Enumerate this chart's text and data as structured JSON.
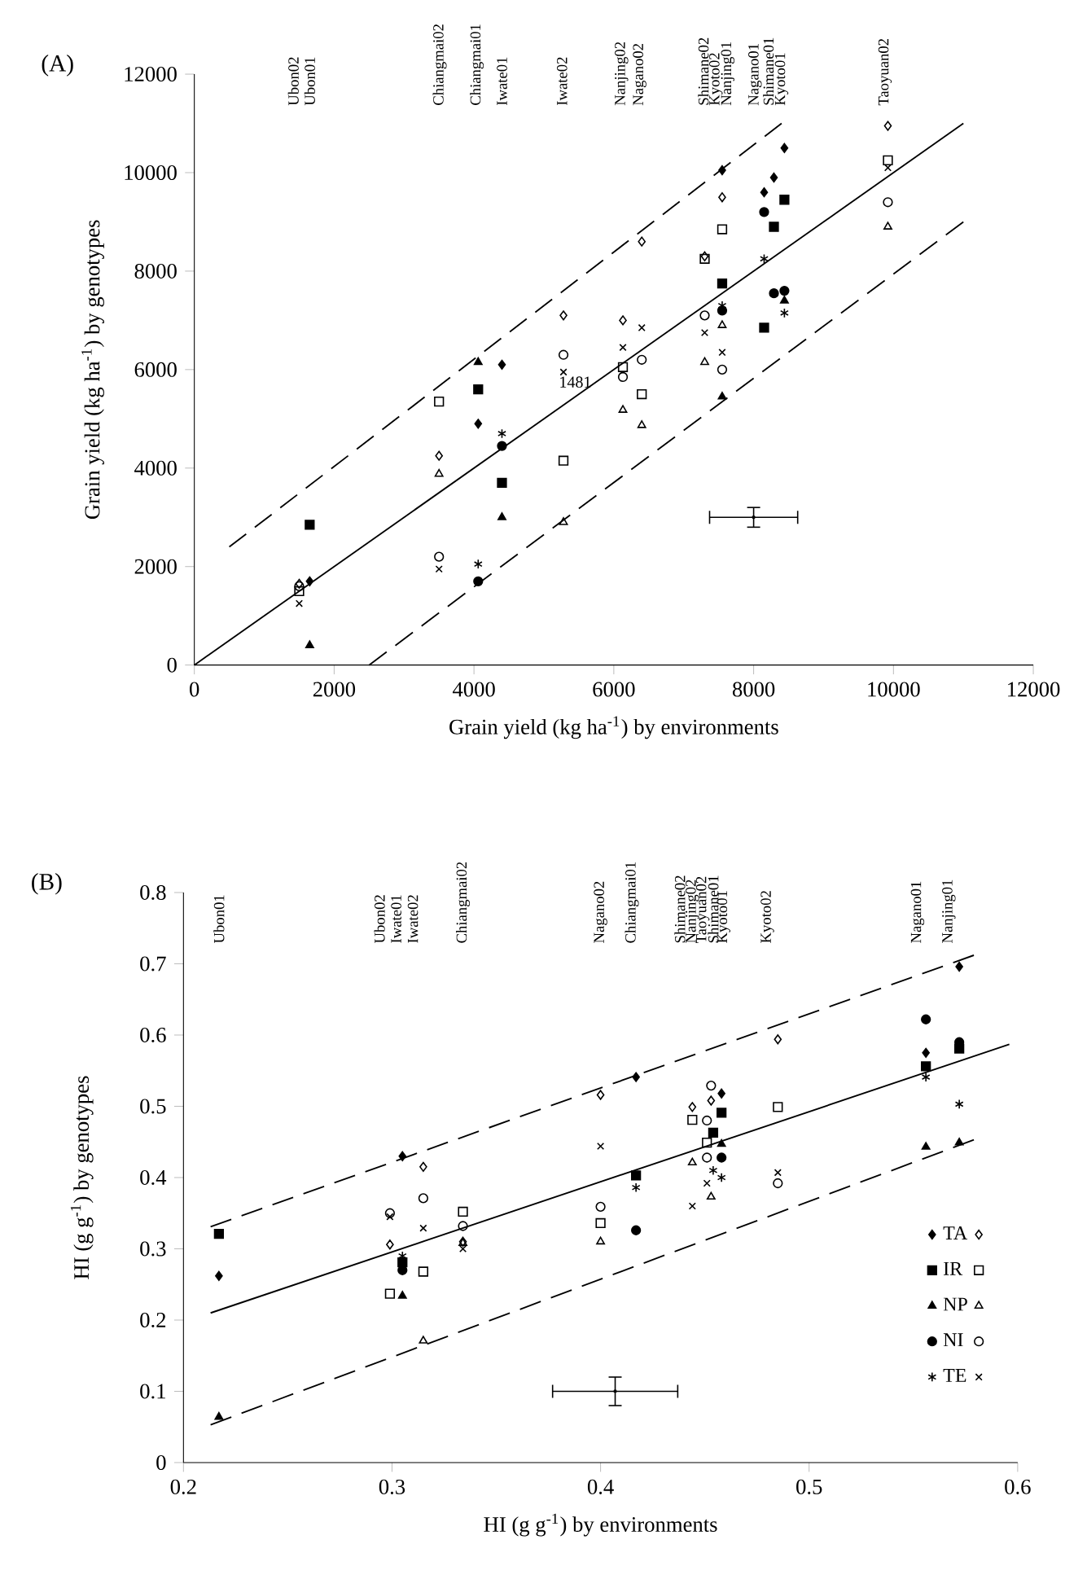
{
  "chart_data": [
    {
      "type": "scatter",
      "title": "(A)",
      "xlabel": "Grain yield (kg ha$^{-1}$) by environments",
      "ylabel": "Grain yield (kg ha$^{-1}$) by genotypes",
      "xlim": [
        0,
        12000
      ],
      "ylim": [
        0,
        12000
      ],
      "xticks": [
        0,
        2000,
        4000,
        6000,
        8000,
        10000,
        12000
      ],
      "yticks": [
        0,
        2000,
        4000,
        6000,
        8000,
        10000,
        12000
      ],
      "legend": false,
      "series": [
        {
          "type": "scatter",
          "marker": "diamond",
          "color": "#000000",
          "x": [
            1650,
            4060,
            4400,
            7550,
            8150,
            8290,
            8440
          ],
          "values": [
            1700,
            4900,
            6100,
            10050,
            9600,
            9900,
            10500
          ]
        },
        {
          "type": "scatter",
          "marker": "diamond",
          "color": "#000000",
          "x": [
            1500,
            3500,
            5280,
            6130,
            6400,
            7300,
            7550,
            9920
          ],
          "values": [
            1650,
            4250,
            7100,
            7000,
            8600,
            8300,
            9500,
            10950
          ]
        },
        {
          "type": "scatter",
          "marker": "square",
          "color": "#000000",
          "x": [
            1650,
            4060,
            4400,
            7550,
            8150,
            8290,
            8440
          ],
          "values": [
            2850,
            5600,
            3700,
            7750,
            6850,
            8900,
            9450
          ]
        },
        {
          "type": "scatter",
          "marker": "square",
          "color": "#000000",
          "x": [
            1500,
            3500,
            5280,
            6130,
            6400,
            7300,
            7550,
            9920
          ],
          "values": [
            1500,
            5350,
            4150,
            6050,
            5500,
            8250,
            8850,
            10250
          ]
        },
        {
          "type": "scatter",
          "marker": "triangle",
          "color": "#000000",
          "x": [
            1650,
            4060,
            4400,
            7550,
            8440
          ],
          "values": [
            400,
            6150,
            3000,
            5450,
            7400
          ]
        },
        {
          "type": "scatter",
          "marker": "triangle",
          "color": "#000000",
          "x": [
            3500,
            5280,
            6130,
            6400,
            7300,
            7550,
            9920
          ],
          "values": [
            3880,
            2900,
            5180,
            4870,
            6150,
            6900,
            8900
          ]
        },
        {
          "type": "scatter",
          "marker": "circle",
          "color": "#000000",
          "x": [
            4060,
            4400,
            7550,
            8150,
            8290,
            8440
          ],
          "values": [
            1700,
            4450,
            7200,
            9200,
            7550,
            7600
          ]
        },
        {
          "type": "scatter",
          "marker": "circle",
          "color": "#000000",
          "x": [
            1500,
            3500,
            5280,
            6130,
            6400,
            7300,
            7550,
            9920
          ],
          "values": [
            1600,
            2200,
            6300,
            5850,
            6200,
            7100,
            6000,
            9400
          ]
        },
        {
          "type": "scatter",
          "marker": "cross",
          "color": "#000000",
          "x": [
            4060,
            4400,
            7550,
            8150,
            8440
          ],
          "values": [
            2050,
            4700,
            7300,
            8250,
            7150
          ]
        },
        {
          "type": "scatter",
          "marker": "cross",
          "color": "#000000",
          "x": [
            1500,
            3500,
            5280,
            6130,
            6400,
            7300,
            7550,
            9920
          ],
          "values": [
            1250,
            1950,
            5950,
            6450,
            6850,
            6750,
            6350,
            10100
          ]
        },
        {
          "type": "line",
          "line_style": "solid",
          "color": "#000000",
          "x": [
            0,
            11000
          ],
          "values": [
            0,
            11000
          ]
        },
        {
          "type": "line",
          "line_style": "dashed",
          "color": "#000000",
          "x": [
            500,
            8400
          ],
          "values": [
            2400,
            11000
          ]
        },
        {
          "type": "line",
          "line_style": "dashed",
          "color": "#000000",
          "x": [
            2500,
            11000
          ],
          "values": [
            0,
            9000
          ]
        },
        {
          "type": "scatter",
          "marker": "circle",
          "color": "#000000",
          "x": [
            8000
          ],
          "values": [
            3000
          ],
          "errors": [
            200
          ],
          "xerrors": [
            630
          ]
        }
      ],
      "annotations": [
        "Ubon02",
        "Ubon01",
        "Chiangmai02",
        "Chiangmai01",
        "Iwate01",
        "Iwate02",
        "Nanjing02",
        "Nagano02",
        "Shimane02",
        "Kyoto02",
        "Nanjing01",
        "Nagano01",
        "Shimane01",
        "Kyoto01",
        "Taoyuan02",
        "1481"
      ]
    },
    {
      "type": "scatter",
      "title": "(B)",
      "xlabel": "HI (g g$^{-1}$) by environments",
      "ylabel": "HI (g g$^{-1}$) by genotypes",
      "xlim": [
        0.2,
        0.6
      ],
      "ylim": [
        0,
        0.8
      ],
      "xticks": [
        0.2,
        0.3,
        0.4,
        0.5,
        0.6
      ],
      "yticks": [
        0,
        0.1,
        0.2,
        0.3,
        0.4,
        0.5,
        0.6,
        0.7,
        0.8
      ],
      "legend": "bottom right",
      "annotations": [
        "Ubon01",
        "Ubon02",
        "Iwate01",
        "Iwate02",
        "Chiangmai02",
        "Nagano02",
        "Chiangmai01",
        "Shimane02",
        "Nanjing02",
        "Taoyuan02",
        "Shimane01",
        "Kyoto01",
        "Kyoto02",
        "Nagano01",
        "Nanjing01"
      ],
      "series": [
        {
          "type": "scatter",
          "name": "TA",
          "marker": "diamond",
          "color": "#000000",
          "x": [
            0.217,
            0.305,
            0.417,
            0.458,
            0.556,
            0.572
          ],
          "values": [
            0.262,
            0.43,
            0.541,
            0.518,
            0.575,
            0.696
          ]
        },
        {
          "type": "scatter",
          "marker": "diamond",
          "color": "#000000",
          "x": [
            0.299,
            0.315,
            0.334,
            0.4,
            0.444,
            0.453,
            0.485
          ],
          "values": [
            0.306,
            0.415,
            0.31,
            0.516,
            0.499,
            0.508,
            0.594
          ]
        },
        {
          "type": "scatter",
          "name": "IR",
          "marker": "square",
          "color": "#000000",
          "x": [
            0.217,
            0.305,
            0.417,
            0.458,
            0.454,
            0.556,
            0.572
          ],
          "values": [
            0.321,
            0.281,
            0.403,
            0.491,
            0.463,
            0.556,
            0.581
          ]
        },
        {
          "type": "scatter",
          "marker": "square",
          "color": "#000000",
          "x": [
            0.299,
            0.315,
            0.334,
            0.4,
            0.444,
            0.451,
            0.485
          ],
          "values": [
            0.237,
            0.268,
            0.352,
            0.336,
            0.481,
            0.449,
            0.499
          ]
        },
        {
          "type": "scatter",
          "name": "NP",
          "marker": "triangle",
          "color": "#000000",
          "x": [
            0.217,
            0.305,
            0.458,
            0.556,
            0.572
          ],
          "values": [
            0.064,
            0.234,
            0.447,
            0.443,
            0.449
          ]
        },
        {
          "type": "scatter",
          "marker": "triangle",
          "color": "#000000",
          "x": [
            0.315,
            0.334,
            0.4,
            0.444,
            0.453
          ],
          "values": [
            0.171,
            0.308,
            0.31,
            0.421,
            0.373
          ]
        },
        {
          "type": "scatter",
          "name": "NI",
          "marker": "circle",
          "color": "#000000",
          "x": [
            0.305,
            0.417,
            0.458,
            0.556,
            0.572
          ],
          "values": [
            0.27,
            0.326,
            0.428,
            0.622,
            0.59
          ]
        },
        {
          "type": "scatter",
          "marker": "circle",
          "color": "#000000",
          "x": [
            0.299,
            0.315,
            0.334,
            0.4,
            0.453,
            0.451,
            0.451,
            0.485
          ],
          "values": [
            0.35,
            0.371,
            0.332,
            0.359,
            0.529,
            0.48,
            0.428,
            0.392
          ]
        },
        {
          "type": "scatter",
          "name": "TE",
          "marker": "cross",
          "color": "#000000",
          "x": [
            0.305,
            0.417,
            0.458,
            0.454,
            0.556,
            0.572
          ],
          "values": [
            0.29,
            0.386,
            0.4,
            0.41,
            0.541,
            0.503
          ]
        },
        {
          "type": "scatter",
          "marker": "cross",
          "color": "#000000",
          "x": [
            0.299,
            0.315,
            0.334,
            0.4,
            0.444,
            0.451,
            0.485
          ],
          "values": [
            0.345,
            0.329,
            0.3,
            0.444,
            0.36,
            0.392,
            0.407
          ]
        },
        {
          "type": "line",
          "line_style": "solid",
          "color": "#000000",
          "x": [
            0.213,
            0.596
          ],
          "values": [
            0.21,
            0.587
          ]
        },
        {
          "type": "line",
          "line_style": "dashed",
          "color": "#000000",
          "x": [
            0.213,
            0.579
          ],
          "values": [
            0.331,
            0.712
          ]
        },
        {
          "type": "line",
          "line_style": "dashed",
          "color": "#000000",
          "x": [
            0.213,
            0.579
          ],
          "values": [
            0.053,
            0.453
          ]
        },
        {
          "type": "scatter",
          "marker": "circle",
          "color": "#000000",
          "x": [
            0.407
          ],
          "values": [
            0.1
          ],
          "errors": [
            0.02
          ],
          "xerrors": [
            0.03
          ]
        }
      ]
    }
  ]
}
